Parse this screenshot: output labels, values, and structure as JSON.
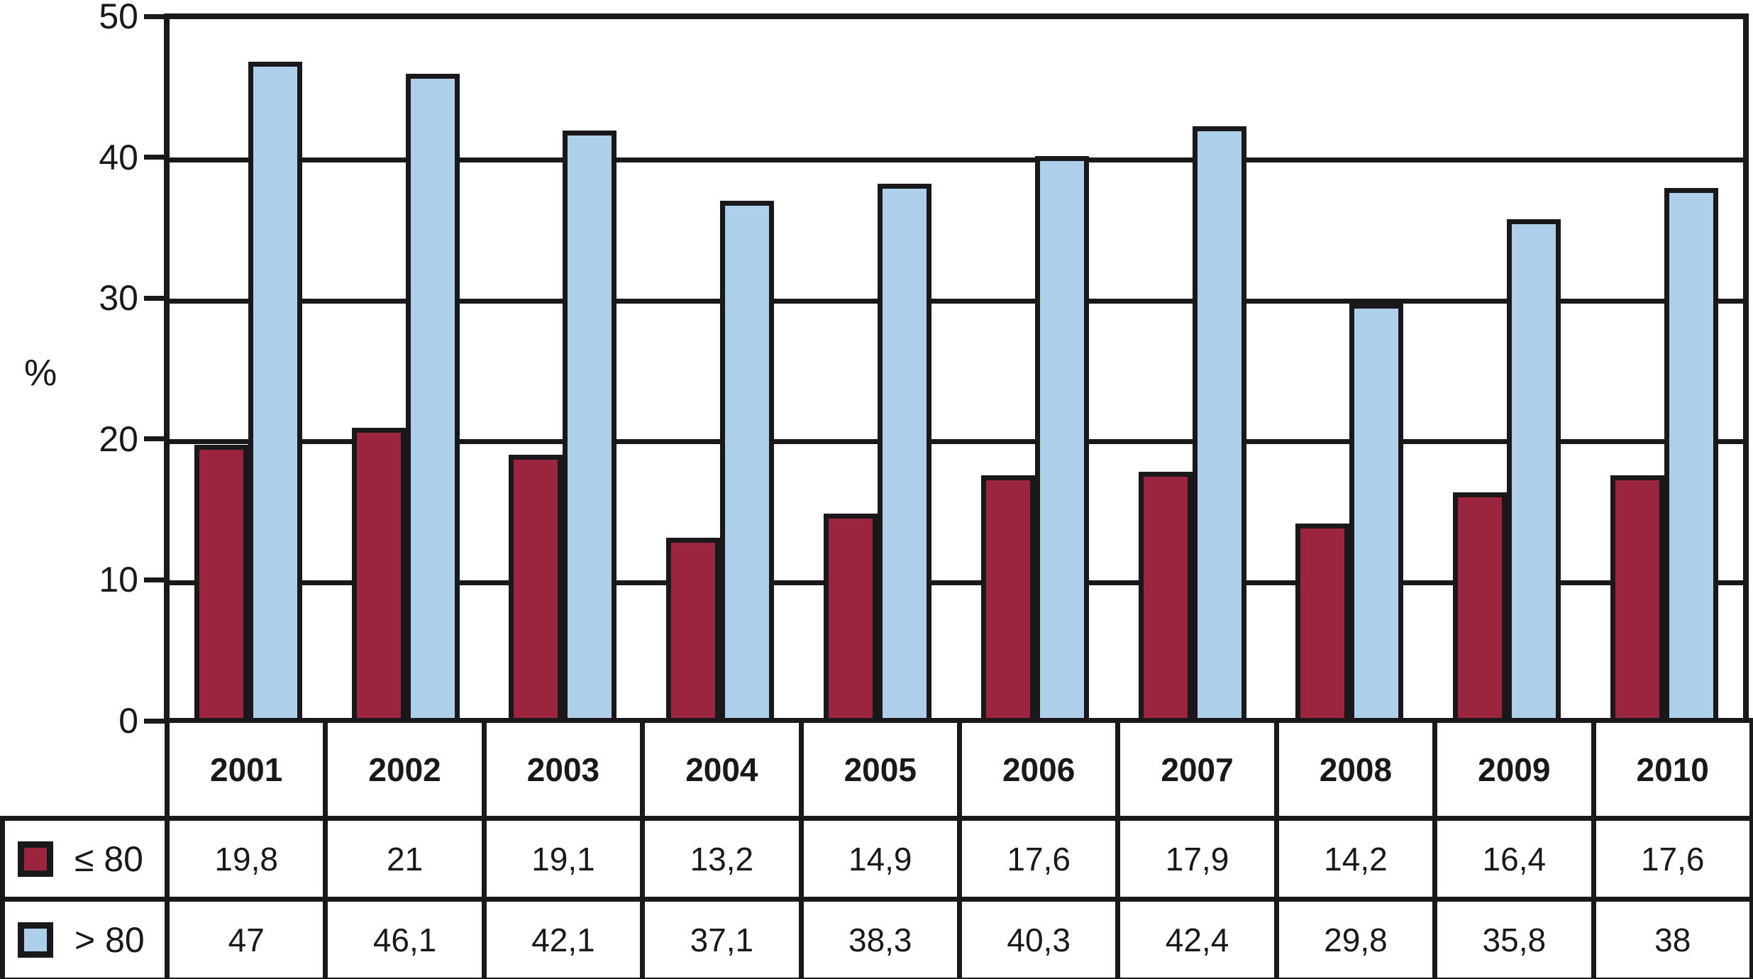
{
  "chart_data": {
    "type": "bar",
    "title": "",
    "ylabel": "%",
    "xlabel": "",
    "ylim": [
      0,
      50
    ],
    "yticks": [
      0,
      10,
      20,
      30,
      40,
      50
    ],
    "grid": "horizontal",
    "legend_position": "table-left",
    "categories": [
      "2001",
      "2002",
      "2003",
      "2004",
      "2005",
      "2006",
      "2007",
      "2008",
      "2009",
      "2010"
    ],
    "series": [
      {
        "name": "≤ 80",
        "color": "#9b253e",
        "values": [
          19.8,
          21,
          19.1,
          13.2,
          14.9,
          17.6,
          17.9,
          14.2,
          16.4,
          17.6
        ],
        "labels": [
          "19,8",
          "21",
          "19,1",
          "13,2",
          "14,9",
          "17,6",
          "17,9",
          "14,2",
          "16,4",
          "17,6"
        ]
      },
      {
        "name": "> 80",
        "color": "#aecfe9",
        "values": [
          47,
          46.1,
          42.1,
          37.1,
          38.3,
          40.3,
          42.4,
          29.8,
          35.8,
          38
        ],
        "labels": [
          "47",
          "46,1",
          "42,1",
          "37,1",
          "38,3",
          "40,3",
          "42,4",
          "29,8",
          "35,8",
          "38"
        ]
      }
    ],
    "line_color": "#1b181c"
  }
}
